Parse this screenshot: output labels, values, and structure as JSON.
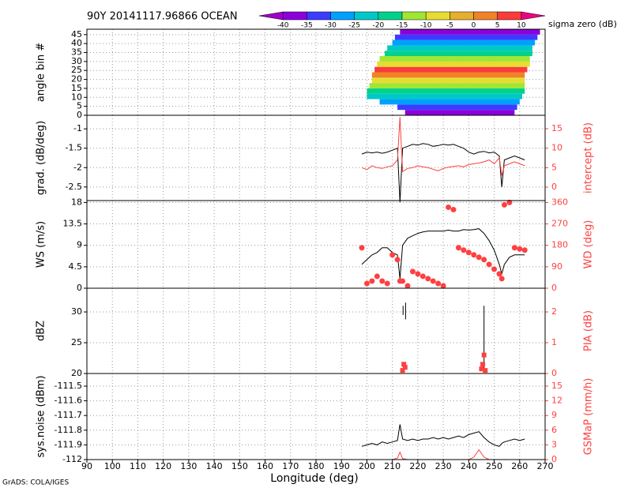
{
  "title": "90Y 20141117.96866 OCEAN",
  "footer": "GrADS: COLA/IGES",
  "x_axis": {
    "label": "Longitude (deg)",
    "xlim": [
      90,
      270
    ],
    "xticks": [
      90,
      100,
      110,
      120,
      130,
      140,
      150,
      160,
      170,
      180,
      190,
      200,
      210,
      220,
      230,
      240,
      250,
      260,
      270
    ]
  },
  "chart_data": [
    {
      "type": "heatmap",
      "ylabel": "angle bin #",
      "ylim": [
        0,
        48
      ],
      "yticks": [
        0,
        5,
        10,
        15,
        20,
        25,
        30,
        35,
        40,
        45
      ],
      "grid": true,
      "colorbar": {
        "label": "sigma zero (dB)",
        "levels": [
          -40,
          -35,
          -30,
          -25,
          -20,
          -15,
          -10,
          -5,
          0,
          5,
          10
        ],
        "colors": [
          "#a000c8",
          "#8c00dc",
          "#3c3cff",
          "#00a0ff",
          "#00c8c8",
          "#00d28c",
          "#a0e632",
          "#e6dc32",
          "#e6af2d",
          "#f08228",
          "#fa3c3c",
          "#f00082"
        ]
      },
      "rows": [
        {
          "bins": [
            0,
            3
          ],
          "lon": [
            215,
            258
          ],
          "value": -38
        },
        {
          "bins": [
            3,
            6
          ],
          "lon": [
            212,
            259
          ],
          "value": -32
        },
        {
          "bins": [
            6,
            9
          ],
          "lon": [
            205,
            260
          ],
          "value": -28
        },
        {
          "bins": [
            9,
            12
          ],
          "lon": [
            200,
            261
          ],
          "value": -24
        },
        {
          "bins": [
            12,
            15
          ],
          "lon": [
            200,
            262
          ],
          "value": -20
        },
        {
          "bins": [
            15,
            18
          ],
          "lon": [
            201,
            262
          ],
          "value": -14
        },
        {
          "bins": [
            18,
            21
          ],
          "lon": [
            202,
            262
          ],
          "value": -8
        },
        {
          "bins": [
            21,
            24
          ],
          "lon": [
            202,
            262
          ],
          "value": 2
        },
        {
          "bins": [
            24,
            27
          ],
          "lon": [
            203,
            263
          ],
          "value": 6
        },
        {
          "bins": [
            27,
            30
          ],
          "lon": [
            204,
            264
          ],
          "value": -6
        },
        {
          "bins": [
            30,
            33
          ],
          "lon": [
            205,
            264
          ],
          "value": -14
        },
        {
          "bins": [
            33,
            36
          ],
          "lon": [
            207,
            265
          ],
          "value": -20
        },
        {
          "bins": [
            36,
            39
          ],
          "lon": [
            208,
            265
          ],
          "value": -24
        },
        {
          "bins": [
            39,
            42
          ],
          "lon": [
            210,
            266
          ],
          "value": -30
        },
        {
          "bins": [
            42,
            45
          ],
          "lon": [
            211,
            267
          ],
          "value": -34
        },
        {
          "bins": [
            45,
            48
          ],
          "lon": [
            213,
            268
          ],
          "value": -38
        }
      ]
    },
    {
      "type": "line",
      "ylabel": "grad. (dB/deg)",
      "y2label": "intercept (dB)",
      "grid": true,
      "ylim": [
        -2.85,
        -0.65
      ],
      "yticks": [
        -2.5,
        -2,
        -1.5,
        -1
      ],
      "y2lim": [
        -3.45,
        18.45
      ],
      "y2ticks": [
        0,
        5,
        10,
        15
      ],
      "x": [
        198,
        200,
        202,
        204,
        206,
        208,
        210,
        212,
        213,
        214,
        216,
        218,
        220,
        222,
        224,
        226,
        228,
        230,
        232,
        234,
        236,
        238,
        240,
        242,
        244,
        246,
        248,
        250,
        252,
        253,
        254,
        256,
        258,
        260,
        262
      ],
      "series": [
        {
          "color": "#000000",
          "marker": "line",
          "values": [
            -1.65,
            -1.6,
            -1.62,
            -1.6,
            -1.63,
            -1.6,
            -1.55,
            -1.5,
            -2.9,
            -1.5,
            -1.45,
            -1.4,
            -1.42,
            -1.38,
            -1.4,
            -1.45,
            -1.43,
            -1.4,
            -1.42,
            -1.4,
            -1.45,
            -1.5,
            -1.6,
            -1.65,
            -1.6,
            -1.58,
            -1.62,
            -1.6,
            -1.7,
            -2.5,
            -1.8,
            -1.75,
            -1.7,
            -1.75,
            -1.8
          ]
        },
        {
          "color": "#ff4040",
          "marker": "line",
          "axis": "y2",
          "values": [
            5,
            4.5,
            5.5,
            5,
            4.8,
            5.2,
            5.5,
            7,
            18,
            4,
            4.8,
            5,
            5.5,
            5.2,
            5,
            4.6,
            4.2,
            4.8,
            5.1,
            5.3,
            5.5,
            5.2,
            5.8,
            6,
            6.2,
            6.5,
            7,
            6,
            7.5,
            3,
            5.5,
            6,
            6.5,
            6,
            5.5
          ]
        }
      ]
    },
    {
      "type": "line",
      "ylabel": "WS (m/s)",
      "y2label": "WD (deg)",
      "grid": true,
      "ylim": [
        0,
        18.4
      ],
      "yticks": [
        0,
        4.5,
        9,
        13.5,
        18
      ],
      "y2lim": [
        0,
        368
      ],
      "y2ticks": [
        0,
        90,
        180,
        270,
        360
      ],
      "x": [
        198,
        200,
        202,
        204,
        206,
        208,
        210,
        212,
        213,
        214,
        216,
        218,
        220,
        222,
        224,
        226,
        228,
        230,
        232,
        234,
        236,
        238,
        240,
        242,
        244,
        246,
        248,
        250,
        252,
        253,
        254,
        256,
        258,
        260,
        262
      ],
      "series": [
        {
          "color": "#000000",
          "marker": "line",
          "values": [
            5,
            6,
            7,
            7.5,
            8.5,
            8.5,
            7.5,
            7,
            2,
            9,
            10.5,
            11,
            11.5,
            11.8,
            12,
            12,
            12,
            12,
            12.2,
            12,
            12,
            12.3,
            12.2,
            12.3,
            12.5,
            11.5,
            10,
            8,
            5,
            3,
            5,
            6.5,
            7,
            7,
            7
          ]
        },
        {
          "color": "#ff4040",
          "marker": "circle",
          "axis": "y2",
          "values": [
            170,
            20,
            30,
            50,
            30,
            20,
            140,
            120,
            30,
            30,
            10,
            70,
            60,
            50,
            40,
            30,
            20,
            10,
            340,
            330,
            170,
            160,
            150,
            140,
            130,
            120,
            100,
            80,
            60,
            40,
            350,
            360,
            170,
            165,
            160
          ]
        }
      ]
    },
    {
      "type": "line",
      "ylabel": "dBZ",
      "y2label": "PIA (dB)",
      "grid": true,
      "ylim": [
        20,
        33.85
      ],
      "yticks": [
        20,
        25,
        30
      ],
      "y2lim": [
        0,
        2.77
      ],
      "y2ticks": [
        0,
        1,
        2
      ],
      "series": [
        {
          "color": "#000000",
          "marker": "line",
          "x": [
            214.2,
            214.2,
            214.7,
            215.2,
            215.2,
            230,
            246,
            246
          ],
          "values": [
            31,
            29.5,
            null,
            31.5,
            28.8,
            null,
            31,
            20.5
          ]
        },
        {
          "color": "#ff4040",
          "marker": "square",
          "axis": "y2",
          "x": [
            214,
            214.5,
            215,
            245,
            245.5,
            246,
            246.5
          ],
          "values": [
            0.1,
            0.3,
            0.2,
            0.15,
            0.3,
            0.6,
            0.1
          ]
        }
      ]
    },
    {
      "type": "line",
      "ylabel": "sys.noise (dBm)",
      "y2label": "GSMaP (mm/h)",
      "grid": true,
      "ylim": [
        -112,
        -111.414
      ],
      "yticks": [
        -112,
        -111.9,
        -111.8,
        -111.7,
        -111.6,
        -111.5
      ],
      "y2lim": [
        0,
        17.58
      ],
      "y2ticks": [
        0,
        3,
        6,
        9,
        12,
        15
      ],
      "x": [
        198,
        200,
        202,
        204,
        206,
        208,
        210,
        212,
        213,
        214,
        216,
        218,
        220,
        222,
        224,
        226,
        228,
        230,
        232,
        234,
        236,
        238,
        240,
        242,
        244,
        246,
        248,
        250,
        252,
        253,
        254,
        256,
        258,
        260,
        262
      ],
      "series": [
        {
          "color": "#000000",
          "marker": "line",
          "values": [
            -111.91,
            -111.9,
            -111.89,
            -111.9,
            -111.88,
            -111.89,
            -111.88,
            -111.87,
            -111.76,
            -111.86,
            -111.87,
            -111.86,
            -111.87,
            -111.86,
            -111.86,
            -111.85,
            -111.86,
            -111.85,
            -111.86,
            -111.85,
            -111.84,
            -111.85,
            -111.83,
            -111.82,
            -111.81,
            -111.85,
            -111.88,
            -111.9,
            -111.91,
            -111.89,
            -111.88,
            -111.87,
            -111.86,
            -111.87,
            -111.86
          ]
        },
        {
          "color": "#ff4040",
          "marker": "line",
          "axis": "y2",
          "values": [
            0,
            0,
            0,
            0,
            0,
            0,
            0,
            0.3,
            1.5,
            0.2,
            0,
            0,
            0,
            0,
            0,
            0,
            0,
            0,
            0,
            0,
            0,
            0,
            0,
            0.5,
            2,
            0.5,
            0,
            0,
            0,
            0,
            0,
            0,
            0,
            0,
            0
          ]
        }
      ]
    }
  ]
}
